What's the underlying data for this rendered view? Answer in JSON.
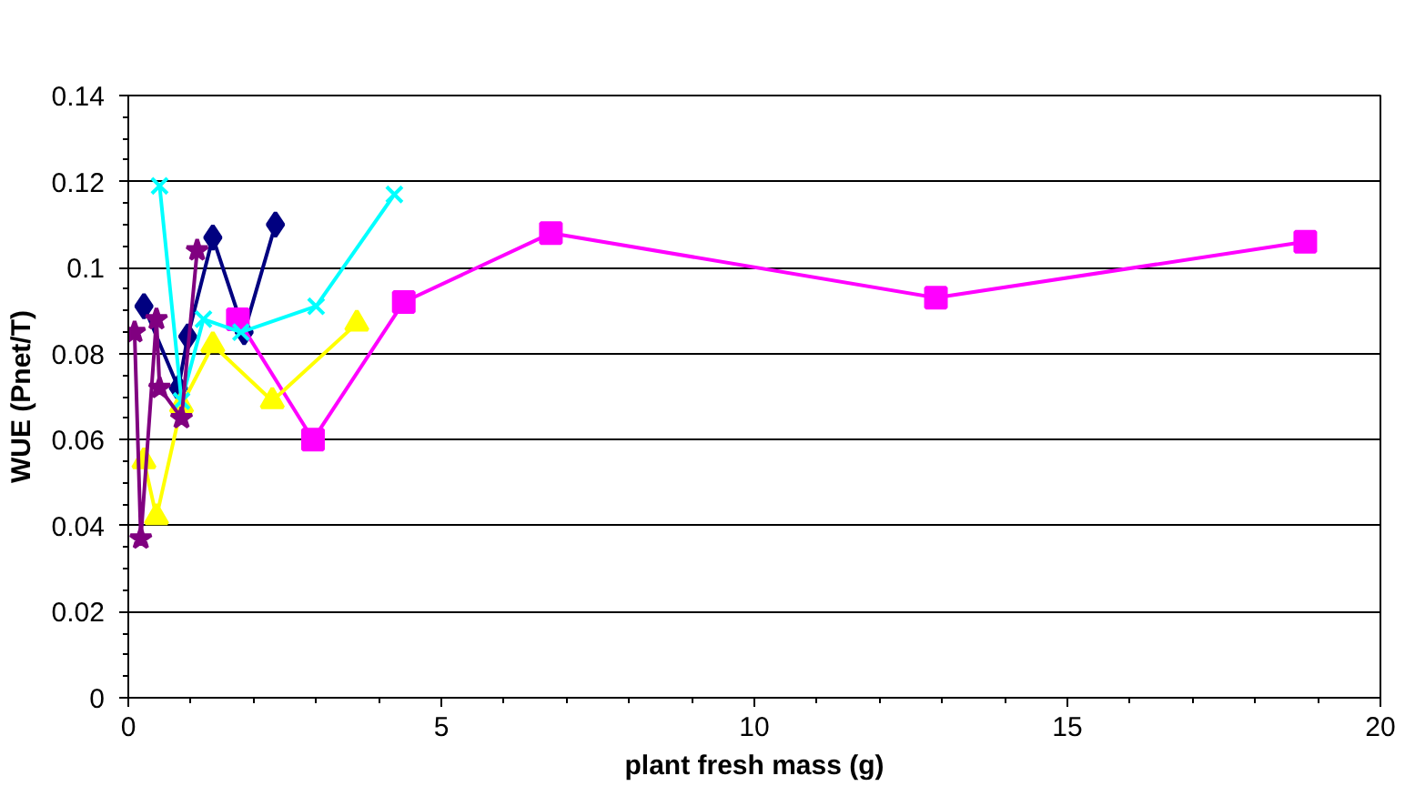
{
  "chart_data": {
    "type": "line",
    "xlabel": "plant fresh mass (g)",
    "ylabel": "WUE (Pnet/T)",
    "xlim": [
      0,
      20
    ],
    "xticks": [
      0,
      5,
      10,
      15,
      20
    ],
    "ylim": [
      0,
      0.14
    ],
    "yticks": [
      0,
      0.02,
      0.04,
      0.06,
      0.08,
      {
        "value": 0.1,
        "label": "0.1"
      },
      0.12,
      0.14
    ],
    "grid": "y",
    "series": [
      {
        "color": "#000080",
        "marker": "diamond",
        "x": [
          0.25,
          0.8,
          0.95,
          1.35,
          1.85,
          2.35
        ],
        "values": [
          0.091,
          0.072,
          0.084,
          0.107,
          0.085,
          0.11
        ]
      },
      {
        "color": "#ff00ff",
        "marker": "square",
        "x": [
          1.75,
          2.95,
          4.4,
          6.75,
          12.9,
          18.8
        ],
        "values": [
          0.088,
          0.06,
          0.092,
          0.108,
          0.093,
          0.106
        ]
      },
      {
        "color": "#ffff00",
        "marker": "triangle",
        "x": [
          0.25,
          0.45,
          0.85,
          1.35,
          2.3,
          3.65
        ],
        "values": [
          0.055,
          0.042,
          0.068,
          0.082,
          0.069,
          0.087
        ]
      },
      {
        "color": "#00ffff",
        "marker": "cross",
        "x": [
          0.5,
          0.85,
          1.2,
          1.8,
          3.0,
          4.25
        ],
        "values": [
          0.119,
          0.069,
          0.088,
          0.085,
          0.091,
          0.117
        ]
      },
      {
        "color": "#800080",
        "marker": "star",
        "x": [
          0.1,
          0.2,
          0.45,
          0.5,
          0.85,
          1.1
        ],
        "values": [
          0.085,
          0.037,
          0.088,
          0.072,
          0.065,
          0.104
        ]
      }
    ]
  }
}
